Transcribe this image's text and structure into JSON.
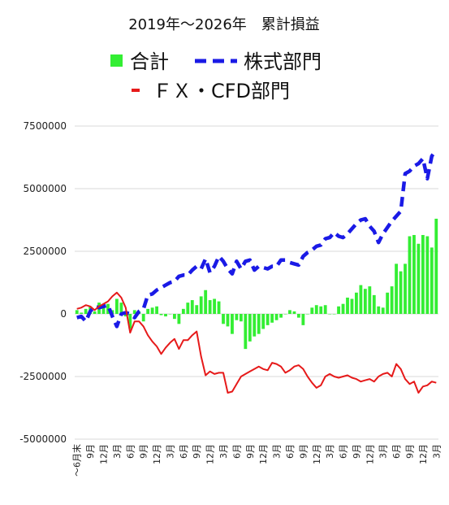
{
  "chart_data": {
    "type": "bar",
    "title": "2019年〜2026年　累計損益",
    "legend": {
      "placement": "top",
      "entries": [
        {
          "key": "total",
          "label": "合計",
          "marker": "square",
          "color": "#33ee33"
        },
        {
          "key": "stock",
          "label": "株式部門",
          "marker": "dash",
          "color": "#1a1ae6"
        },
        {
          "key": "fx",
          "label": "ＦＸ・CFD部門",
          "marker": "line",
          "color": "#e61a1a"
        }
      ]
    },
    "ylim": [
      -5000000,
      7500000
    ],
    "yticks": [
      7500000,
      5000000,
      2500000,
      0,
      -2500000,
      -5000000
    ],
    "ytick_labels": [
      "7500000",
      "5000000",
      "2500000",
      "0",
      "-2500000",
      "-5000000"
    ],
    "grid": true,
    "xtick_labels": [
      {
        "label": "〜6月末",
        "index": 0
      },
      {
        "label": "9月",
        "index": 3
      },
      {
        "label": "12月",
        "index": 6
      },
      {
        "label": "3月",
        "index": 9
      },
      {
        "label": "6月",
        "index": 12
      },
      {
        "label": "9月",
        "index": 15
      },
      {
        "label": "12月",
        "index": 18
      },
      {
        "label": "3月",
        "index": 21
      },
      {
        "label": "6月",
        "index": 24
      },
      {
        "label": "9月",
        "index": 27
      },
      {
        "label": "12月",
        "index": 30
      },
      {
        "label": "3月",
        "index": 33
      },
      {
        "label": "6月",
        "index": 36
      },
      {
        "label": "9月",
        "index": 39
      },
      {
        "label": "12月",
        "index": 42
      },
      {
        "label": "3月",
        "index": 45
      },
      {
        "label": "6月",
        "index": 48
      },
      {
        "label": "9月",
        "index": 51
      },
      {
        "label": "12月",
        "index": 54
      },
      {
        "label": "3月",
        "index": 57
      },
      {
        "label": "6月",
        "index": 60
      },
      {
        "label": "9月",
        "index": 63
      },
      {
        "label": "12月",
        "index": 66
      },
      {
        "label": "3月",
        "index": 69
      },
      {
        "label": "6月",
        "index": 72
      },
      {
        "label": "9月",
        "index": 75
      },
      {
        "label": "12月",
        "index": 78
      },
      {
        "label": "3月",
        "index": 81
      }
    ],
    "series": [
      {
        "name": "合計",
        "render": "bar",
        "color": "#33ee33",
        "values": [
          150000,
          50000,
          200000,
          300000,
          100000,
          450000,
          380000,
          400000,
          150000,
          600000,
          450000,
          -100000,
          -600000,
          150000,
          100000,
          -300000,
          200000,
          250000,
          300000,
          -50000,
          -100000,
          0,
          -200000,
          -400000,
          200000,
          450000,
          550000,
          350000,
          700000,
          950000,
          550000,
          600000,
          500000,
          -400000,
          -500000,
          -800000,
          -250000,
          -300000,
          -1400000,
          -1100000,
          -900000,
          -800000,
          -600000,
          -450000,
          -350000,
          -250000,
          -150000,
          0,
          150000,
          100000,
          -150000,
          -450000,
          0,
          250000,
          350000,
          300000,
          350000,
          0,
          0,
          300000,
          400000,
          650000,
          600000,
          850000,
          1150000,
          1000000,
          1100000,
          750000,
          300000,
          250000,
          850000,
          1100000,
          2000000,
          1700000,
          2000000,
          3100000,
          3150000,
          2800000,
          3150000,
          3100000,
          2650000,
          3800000
        ]
      },
      {
        "name": "株式部門",
        "render": "dashed-line",
        "color": "#1a1ae6",
        "values": [
          -150000,
          -100000,
          -300000,
          100000,
          300000,
          250000,
          300000,
          350000,
          -100000,
          -500000,
          0,
          50000,
          0,
          -150000,
          100000,
          200000,
          750000,
          800000,
          950000,
          1050000,
          1150000,
          1250000,
          1300000,
          1500000,
          1550000,
          1550000,
          1750000,
          1900000,
          1800000,
          2200000,
          1650000,
          1900000,
          2300000,
          2100000,
          1800000,
          1600000,
          2100000,
          1800000,
          2100000,
          2150000,
          1750000,
          1900000,
          1850000,
          1800000,
          1900000,
          1900000,
          2150000,
          2150000,
          2050000,
          2000000,
          1950000,
          2300000,
          2450000,
          2550000,
          2700000,
          2750000,
          3000000,
          3050000,
          3250000,
          3100000,
          3050000,
          3200000,
          3400000,
          3600000,
          3750000,
          3800000,
          3500000,
          3300000,
          2850000,
          3200000,
          3450000,
          3700000,
          3900000,
          4100000,
          5600000,
          5700000,
          5900000,
          6000000,
          6200000,
          5400000,
          6300000,
          6550000
        ]
      },
      {
        "name": "ＦＸ・CFD部門",
        "render": "line",
        "color": "#e61a1a",
        "values": [
          200000,
          250000,
          350000,
          300000,
          150000,
          300000,
          400000,
          500000,
          700000,
          850000,
          650000,
          250000,
          -750000,
          -300000,
          -300000,
          -500000,
          -850000,
          -1100000,
          -1300000,
          -1600000,
          -1350000,
          -1150000,
          -1000000,
          -1400000,
          -1050000,
          -1050000,
          -850000,
          -700000,
          -1700000,
          -2450000,
          -2300000,
          -2400000,
          -2350000,
          -2350000,
          -3150000,
          -3100000,
          -2800000,
          -2500000,
          -2400000,
          -2300000,
          -2200000,
          -2100000,
          -2200000,
          -2250000,
          -1950000,
          -2000000,
          -2100000,
          -2350000,
          -2250000,
          -2100000,
          -2050000,
          -2200000,
          -2500000,
          -2750000,
          -2950000,
          -2850000,
          -2500000,
          -2400000,
          -2500000,
          -2550000,
          -2500000,
          -2450000,
          -2550000,
          -2600000,
          -2700000,
          -2650000,
          -2600000,
          -2700000,
          -2500000,
          -2400000,
          -2350000,
          -2500000,
          -2000000,
          -2200000,
          -2600000,
          -2800000,
          -2700000,
          -3150000,
          -2900000,
          -2850000,
          -2700000,
          -2750000
        ]
      }
    ]
  }
}
